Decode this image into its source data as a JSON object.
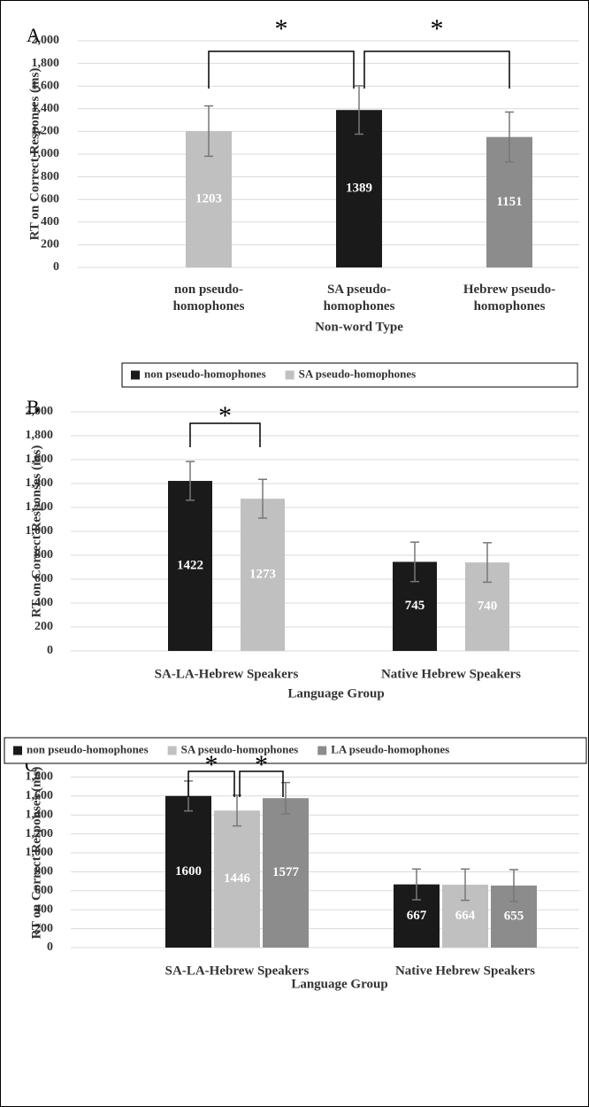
{
  "chart_data": [
    {
      "type": "bar",
      "panel": "A",
      "ylabel": "RT on Correct Responses (ms)",
      "xlabel": "Non-word Type",
      "categories": [
        "non pseudo-\nhomophones",
        "SA pseudo-\nhomophones",
        "Hebrew pseudo-\nhomophones"
      ],
      "values": [
        1203,
        1389,
        1151
      ],
      "errors": [
        222,
        213,
        220
      ],
      "colors": [
        "#c0c0c0",
        "#1a1a1a",
        "#8c8c8c"
      ],
      "ylim": [
        0,
        2000
      ],
      "yticks": [
        0,
        200,
        400,
        600,
        800,
        {
          "value": 1000,
          "label": "1,000"
        },
        {
          "value": 1200,
          "label": "1,200"
        },
        {
          "value": 1400,
          "label": "1,400"
        },
        {
          "value": 1600,
          "label": "1,600"
        },
        {
          "value": 1800,
          "label": "1,800"
        },
        {
          "value": 2000,
          "label": "2,000"
        }
      ],
      "grid": true,
      "significance": [
        {
          "label": "*",
          "between": [
            0,
            1
          ]
        },
        {
          "label": "*",
          "between": [
            1,
            2
          ]
        }
      ]
    },
    {
      "type": "grouped_bar",
      "panel": "B",
      "ylabel": "RT on Correct Responses (ms)",
      "xlabel": "Language Group",
      "categories": [
        "SA-LA-Hebrew Speakers",
        "Native Hebrew Speakers"
      ],
      "series": [
        {
          "name": "non pseudo-homophones",
          "color": "#1a1a1a",
          "values": [
            1422,
            745
          ],
          "errors": [
            162,
            165
          ]
        },
        {
          "name": "SA pseudo-homophones",
          "color": "#c0c0c0",
          "values": [
            1273,
            740
          ],
          "errors": [
            162,
            165
          ]
        }
      ],
      "ylim": [
        0,
        2000
      ],
      "yticks": [
        0,
        200,
        400,
        600,
        800,
        {
          "value": 1000,
          "label": "1,000"
        },
        {
          "value": 1200,
          "label": "1,200"
        },
        {
          "value": 1400,
          "label": "1,400"
        },
        {
          "value": 1600,
          "label": "1,600"
        },
        {
          "value": 1800,
          "label": "1,800"
        },
        {
          "value": 2000,
          "label": "2,000"
        }
      ],
      "grid": true,
      "legend": "top",
      "significance": [
        {
          "label": "*",
          "category": 0,
          "between": [
            0,
            1
          ]
        }
      ]
    },
    {
      "type": "grouped_bar",
      "panel": "C",
      "ylabel": "RT on Correct Responses (ms)",
      "xlabel": "Language Group",
      "categories": [
        "SA-LA-Hebrew Speakers",
        "Native Hebrew Speakers"
      ],
      "series": [
        {
          "name": "non pseudo-homophones",
          "color": "#1a1a1a",
          "values": [
            1600,
            667
          ],
          "errors": [
            158,
            162
          ]
        },
        {
          "name": "SA pseudo-homophones",
          "color": "#c0c0c0",
          "values": [
            1446,
            664
          ],
          "errors": [
            162,
            165
          ]
        },
        {
          "name": "LA pseudo-homophones",
          "color": "#8c8c8c",
          "values": [
            1577,
            655
          ],
          "errors": [
            165,
            168
          ]
        }
      ],
      "ylim": [
        0,
        2000
      ],
      "yticks": [
        0,
        200,
        400,
        600,
        800,
        {
          "value": 1000,
          "label": "1,000"
        },
        {
          "value": 1200,
          "label": "1,200"
        },
        {
          "value": 1400,
          "label": "1,400"
        },
        {
          "value": 1600,
          "label": "1,600"
        },
        {
          "value": 1800,
          "label": "1,800"
        },
        {
          "value": 2000,
          "label": "2,000"
        }
      ],
      "grid": true,
      "legend": "top",
      "significance": [
        {
          "label": "*",
          "category": 0,
          "between": [
            0,
            1
          ]
        },
        {
          "label": "*",
          "category": 0,
          "between": [
            1,
            2
          ]
        }
      ]
    }
  ]
}
